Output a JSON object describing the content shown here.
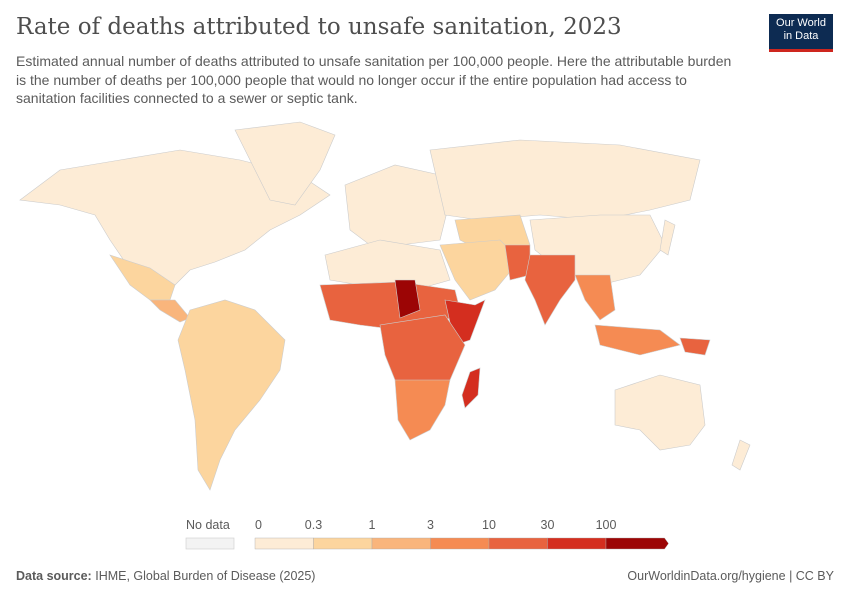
{
  "header": {
    "title": "Rate of deaths attributed to unsafe sanitation, 2023",
    "subtitle": "Estimated annual number of deaths attributed to unsafe sanitation per 100,000 people. Here the attributable burden is the number of deaths per 100,000 people that would no longer occur if the entire population had access to sanitation facilities connected to a sewer or septic tank.",
    "logo_line1": "Our World",
    "logo_line2": "in Data"
  },
  "legend": {
    "no_data": "No data",
    "ticks": [
      "0",
      "0.3",
      "1",
      "3",
      "10",
      "30",
      "100"
    ],
    "colors": [
      "#fdecd6",
      "#fcd59e",
      "#f9b57c",
      "#f58b53",
      "#e8633f",
      "#d42e1f",
      "#9c0505"
    ]
  },
  "footer": {
    "source_label": "Data source:",
    "source": "IHME, Global Burden of Disease (2025)",
    "url": "OurWorldinData.org/hygiene | CC BY"
  },
  "chart_data": {
    "type": "choropleth",
    "metric": "Deaths per 100,000 attributed to unsafe sanitation",
    "year": 2023,
    "scale_bins": [
      0,
      0.3,
      1,
      3,
      10,
      30,
      100
    ],
    "regions": [
      {
        "region": "North America",
        "bin": "0-0.3"
      },
      {
        "region": "Mexico & Central America",
        "bin": "0.3-3"
      },
      {
        "region": "South America",
        "bin": "0.3-1"
      },
      {
        "region": "Europe & Russia",
        "bin": "0-0.3"
      },
      {
        "region": "North Africa",
        "bin": "0-0.3"
      },
      {
        "region": "Middle East",
        "bin": "0.3-3"
      },
      {
        "region": "Chad",
        "bin": "100+"
      },
      {
        "region": "Sahel & West Africa",
        "bin": "10-30"
      },
      {
        "region": "Central & East Africa",
        "bin": "10-30"
      },
      {
        "region": "Southern Africa",
        "bin": "3-10"
      },
      {
        "region": "Madagascar",
        "bin": "30-100"
      },
      {
        "region": "South Asia",
        "bin": "10-30"
      },
      {
        "region": "China",
        "bin": "0-0.3"
      },
      {
        "region": "Southeast Asia",
        "bin": "3-10"
      },
      {
        "region": "Papua New Guinea",
        "bin": "10-30"
      },
      {
        "region": "Australia",
        "bin": "0-0.3"
      }
    ]
  }
}
